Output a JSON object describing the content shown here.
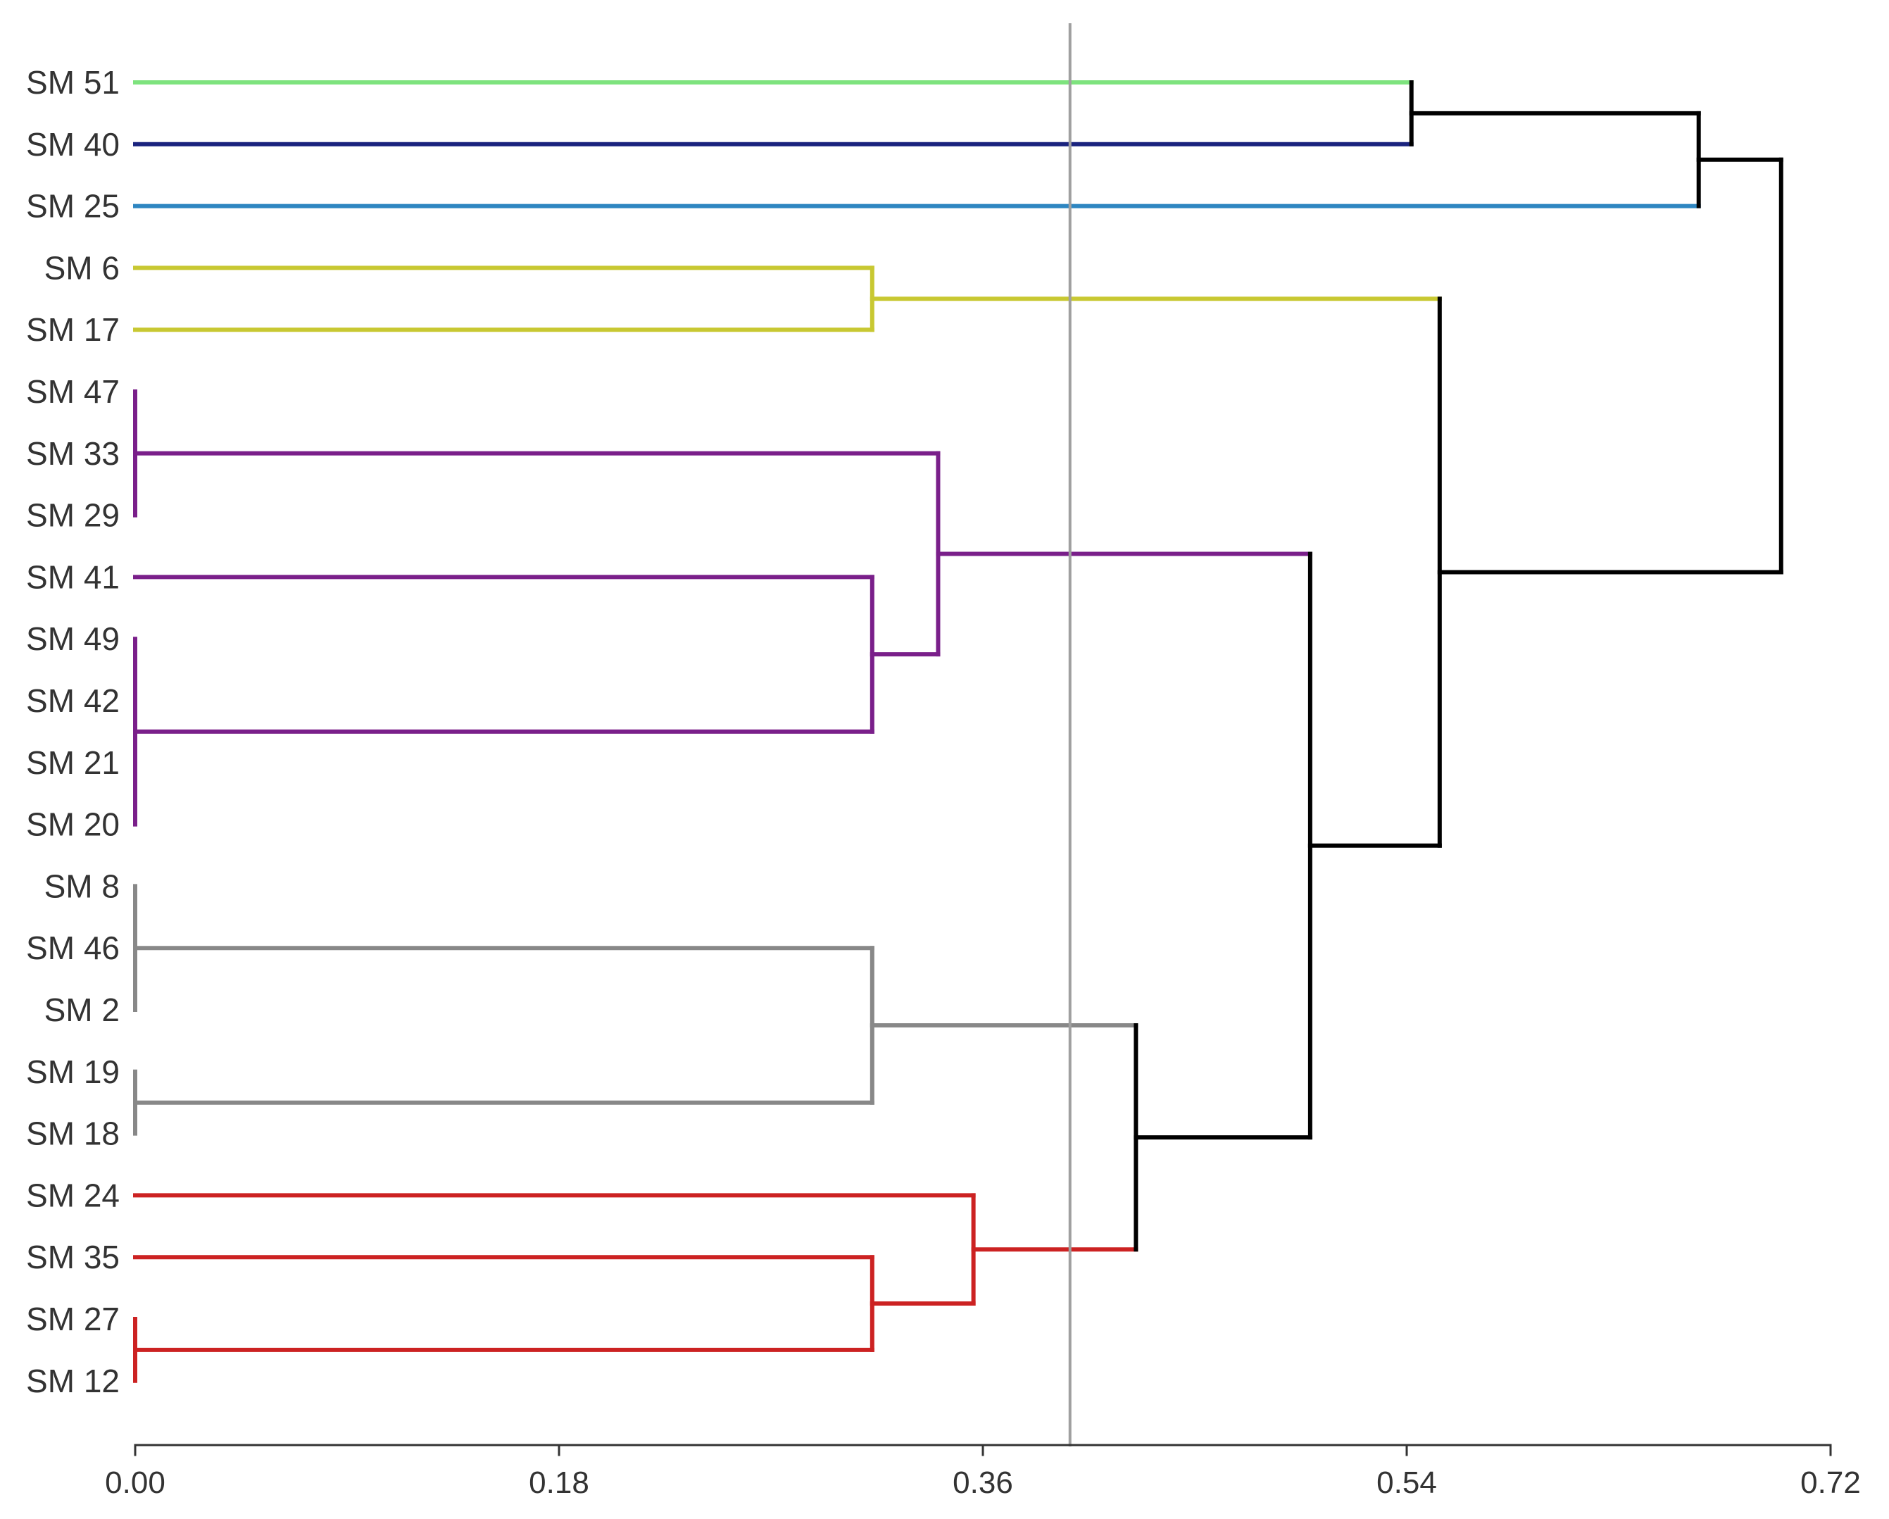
{
  "chart_data": {
    "type": "dendrogram",
    "title": "",
    "xlabel": "",
    "ylabel": "",
    "xlim": [
      0,
      0.72
    ],
    "x_ticks": [
      0.0,
      0.18,
      0.36,
      0.54,
      0.72
    ],
    "x_tick_labels": [
      "0.00",
      "0.18",
      "0.36",
      "0.54",
      "0.72"
    ],
    "cutoff_line": 0.397,
    "leaves": [
      "SM 51",
      "SM 40",
      "SM 25",
      "SM 6",
      "SM 17",
      "SM 47",
      "SM 33",
      "SM 29",
      "SM 41",
      "SM 49",
      "SM 42",
      "SM 21",
      "SM 20",
      "SM 8",
      "SM 46",
      "SM 2",
      "SM 19",
      "SM 18",
      "SM 24",
      "SM 35",
      "SM 27",
      "SM 12"
    ],
    "merges": [
      {
        "id": "A",
        "children": [
          0,
          1
        ],
        "height": 0.542,
        "color": "#000000"
      },
      {
        "id": "B",
        "children": [
          "A",
          2
        ],
        "height": 0.664,
        "color": "#000000"
      },
      {
        "id": "C",
        "children": [
          3,
          4
        ],
        "height": 0.313,
        "color": "#c8c832"
      },
      {
        "id": "D",
        "children": [
          5,
          6,
          7
        ],
        "height": 0.0,
        "color": "#7a1f8a"
      },
      {
        "id": "E",
        "children": [
          9,
          10,
          11,
          12
        ],
        "height": 0.0,
        "color": "#7a1f8a"
      },
      {
        "id": "F",
        "children": [
          8,
          "E"
        ],
        "height": 0.313,
        "color": "#7a1f8a"
      },
      {
        "id": "G",
        "children": [
          "D",
          "F"
        ],
        "height": 0.341,
        "color": "#7a1f8a"
      },
      {
        "id": "H",
        "children": [
          13,
          14,
          15
        ],
        "height": 0.0,
        "color": "#888888"
      },
      {
        "id": "I",
        "children": [
          16,
          17
        ],
        "height": 0.0,
        "color": "#888888"
      },
      {
        "id": "J",
        "children": [
          "H",
          "I"
        ],
        "height": 0.313,
        "color": "#888888"
      },
      {
        "id": "K",
        "children": [
          20,
          21
        ],
        "height": 0.0,
        "color": "#cc2222"
      },
      {
        "id": "L",
        "children": [
          19,
          "K"
        ],
        "height": 0.313,
        "color": "#cc2222"
      },
      {
        "id": "M",
        "children": [
          18,
          "L"
        ],
        "height": 0.356,
        "color": "#cc2222"
      },
      {
        "id": "N",
        "children": [
          "J",
          "M"
        ],
        "height": 0.425,
        "color": "#000000"
      },
      {
        "id": "O",
        "children": [
          "G",
          "N"
        ],
        "height": 0.499,
        "color": "#000000"
      },
      {
        "id": "P",
        "children": [
          "C",
          "O"
        ],
        "height": 0.554,
        "color": "#000000"
      },
      {
        "id": "Q",
        "children": [
          "B",
          "P"
        ],
        "height": 0.699,
        "color": "#000000"
      }
    ],
    "leaf_colors": [
      "#7ee37e",
      "#1a237e",
      "#2e86c1",
      "#c8c832",
      "#c8c832",
      "#7a1f8a",
      "#7a1f8a",
      "#7a1f8a",
      "#7a1f8a",
      "#7a1f8a",
      "#7a1f8a",
      "#7a1f8a",
      "#7a1f8a",
      "#888888",
      "#888888",
      "#888888",
      "#888888",
      "#888888",
      "#cc2222",
      "#cc2222",
      "#cc2222",
      "#cc2222"
    ],
    "cutoff_color": "#a0a0a0"
  }
}
